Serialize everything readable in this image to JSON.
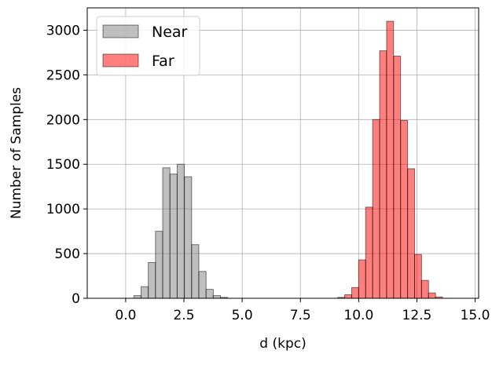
{
  "chart_data": {
    "type": "histogram",
    "xlabel": "d (kpc)",
    "ylabel": "Number of Samples",
    "xlim": [
      -1.65,
      15.15
    ],
    "ylim": [
      0,
      3250
    ],
    "xticks": [
      {
        "value": 0,
        "label": "0.0"
      },
      {
        "value": 2.5,
        "label": "2.5"
      },
      {
        "value": 5,
        "label": "5.0"
      },
      {
        "value": 7.5,
        "label": "7.5"
      },
      {
        "value": 10,
        "label": "10.0"
      },
      {
        "value": 12.5,
        "label": "12.5"
      },
      {
        "value": 15,
        "label": "15.0"
      }
    ],
    "yticks": [
      0,
      500,
      1000,
      1500,
      2000,
      2500,
      3000
    ],
    "grid": true,
    "legend": "upper left",
    "series": [
      {
        "name": "Near",
        "color": "#808080",
        "bins": [
          0.35,
          0.66,
          0.97,
          1.28,
          1.59,
          1.9,
          2.21,
          2.52,
          2.83,
          3.14,
          3.45,
          3.76,
          4.07,
          4.38
        ],
        "values": [
          30,
          130,
          400,
          750,
          1460,
          1390,
          1500,
          1360,
          600,
          300,
          100,
          30,
          10
        ]
      },
      {
        "name": "Far",
        "color": "#ff0000",
        "bins": [
          9.1,
          9.4,
          9.7,
          10.0,
          10.3,
          10.6,
          10.9,
          11.2,
          11.5,
          11.8,
          12.1,
          12.4,
          12.7,
          13.0,
          13.3,
          13.6
        ],
        "values": [
          10,
          40,
          120,
          430,
          1020,
          2000,
          2770,
          3100,
          2710,
          1990,
          1450,
          490,
          200,
          60,
          15
        ]
      }
    ]
  }
}
